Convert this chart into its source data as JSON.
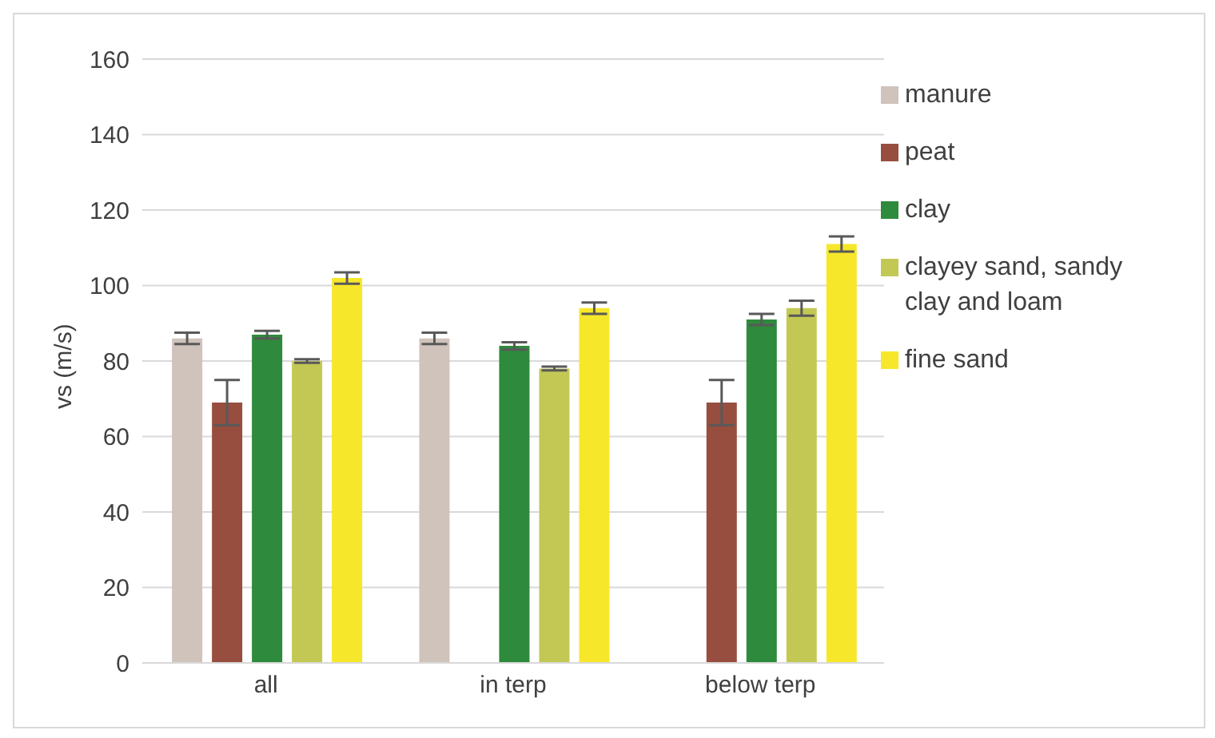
{
  "chart_data": {
    "type": "bar",
    "ylabel": "vs (m/s)",
    "categories": [
      "all",
      "in terp",
      "below terp"
    ],
    "series": [
      {
        "name": "manure",
        "color": "#cfc3bc",
        "values": [
          86,
          86,
          null
        ],
        "errors": [
          1.5,
          1.5,
          null
        ]
      },
      {
        "name": "peat",
        "color": "#984e3f",
        "values": [
          69,
          null,
          69
        ],
        "errors": [
          6,
          null,
          6
        ]
      },
      {
        "name": "clay",
        "color": "#2e8a3c",
        "values": [
          87,
          84,
          91
        ],
        "errors": [
          1,
          1,
          1.5
        ]
      },
      {
        "name": "clayey sand, sandy clay and loam",
        "color": "#c3c855",
        "values": [
          80,
          78,
          94
        ],
        "errors": [
          0.5,
          0.5,
          2
        ]
      },
      {
        "name": "fine sand",
        "color": "#f7e72a",
        "values": [
          102,
          94,
          111
        ],
        "errors": [
          1.5,
          1.5,
          2
        ]
      }
    ],
    "ylim": [
      0,
      160
    ],
    "yticks": [
      0,
      20,
      40,
      60,
      80,
      100,
      120,
      140,
      160
    ],
    "grid": "y",
    "legend": "right"
  }
}
